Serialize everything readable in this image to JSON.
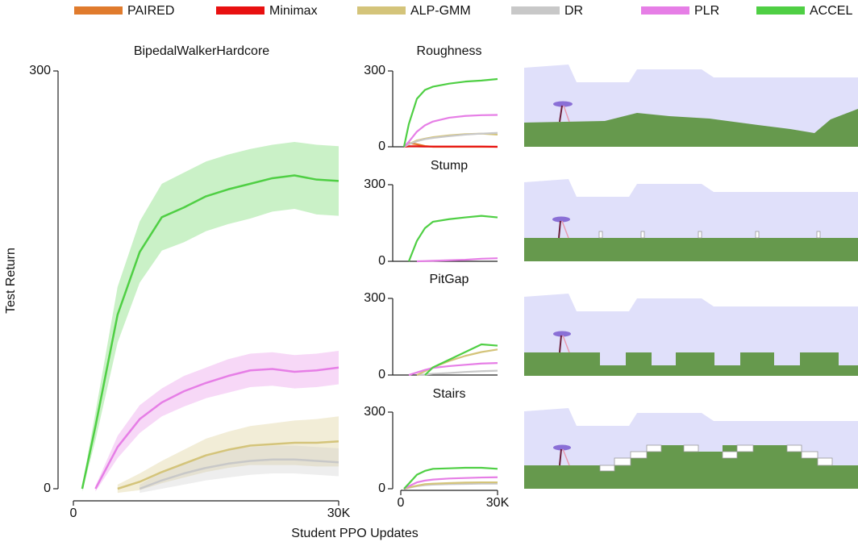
{
  "chart_data": [
    {
      "type": "line",
      "title": "BipedalWalkerHardcore",
      "y_label": "Test Return",
      "x_label": "Student PPO Updates",
      "x": [
        1000,
        2500,
        5000,
        7500,
        10000,
        12500,
        15000,
        17500,
        20000,
        22500,
        25000,
        27500,
        30000
      ],
      "xlim": [
        0,
        30000
      ],
      "xticks": [
        0,
        {
          "value": 30000,
          "label": "30K"
        }
      ],
      "ylim": [
        0,
        300
      ],
      "yticks": [
        0,
        300
      ],
      "series": [
        {
          "name": "ALP-GMM",
          "color": "#d4c47a",
          "values": [
            null,
            null,
            0,
            5,
            12,
            18,
            24,
            28,
            31,
            32,
            33,
            33,
            34
          ],
          "errors": [
            null,
            null,
            3,
            6,
            8,
            10,
            12,
            13,
            14,
            15,
            16,
            17,
            18
          ]
        },
        {
          "name": "DR",
          "color": "#c8c8c8",
          "values": [
            null,
            null,
            null,
            0,
            6,
            11,
            15,
            18,
            20,
            21,
            21,
            20,
            19
          ],
          "errors": [
            null,
            null,
            null,
            3,
            6,
            8,
            9,
            10,
            10,
            10,
            10,
            10,
            10
          ]
        },
        {
          "name": "PLR",
          "color": "#e67ee6",
          "values": [
            null,
            0,
            30,
            50,
            62,
            70,
            76,
            81,
            85,
            86,
            84,
            85,
            87
          ],
          "errors": [
            null,
            2,
            8,
            10,
            10,
            11,
            11,
            12,
            12,
            12,
            12,
            12,
            12
          ]
        },
        {
          "name": "ACCEL",
          "color": "#4fcf44",
          "values": [
            0,
            45,
            125,
            170,
            195,
            202,
            210,
            215,
            219,
            223,
            225,
            222,
            221
          ],
          "errors": [
            2,
            10,
            20,
            22,
            24,
            25,
            25,
            25,
            25,
            24,
            24,
            25,
            25
          ]
        }
      ]
    },
    {
      "type": "line",
      "title": "Roughness",
      "x": [
        1000,
        2500,
        5000,
        7500,
        10000,
        15000,
        20000,
        25000,
        30000
      ],
      "xlim": [
        0,
        30000
      ],
      "ylim": [
        0,
        300
      ],
      "yticks": [
        0,
        300
      ],
      "series": [
        {
          "name": "PAIRED",
          "color": "#e07b2d",
          "values": [
            0,
            15,
            10,
            3,
            0,
            0,
            0,
            0,
            0
          ]
        },
        {
          "name": "Minimax",
          "color": "#e81010",
          "values": [
            0,
            2,
            2,
            1,
            1,
            1,
            1,
            1,
            0
          ]
        },
        {
          "name": "ALP-GMM",
          "color": "#d4c47a",
          "values": [
            0,
            10,
            25,
            32,
            38,
            45,
            50,
            52,
            48
          ]
        },
        {
          "name": "DR",
          "color": "#c8c8c8",
          "values": [
            0,
            10,
            22,
            30,
            35,
            42,
            48,
            52,
            55
          ]
        },
        {
          "name": "PLR",
          "color": "#e67ee6",
          "values": [
            0,
            20,
            60,
            85,
            100,
            115,
            122,
            125,
            126
          ]
        },
        {
          "name": "ACCEL",
          "color": "#4fcf44",
          "values": [
            0,
            90,
            190,
            225,
            238,
            250,
            258,
            262,
            268
          ]
        }
      ]
    },
    {
      "type": "line",
      "title": "Stump",
      "x": [
        1000,
        2500,
        5000,
        7500,
        10000,
        15000,
        20000,
        25000,
        30000
      ],
      "xlim": [
        0,
        30000
      ],
      "ylim": [
        0,
        300
      ],
      "yticks": [
        0,
        300
      ],
      "series": [
        {
          "name": "PLR",
          "color": "#e67ee6",
          "values": [
            null,
            null,
            0,
            1,
            2,
            4,
            6,
            10,
            12
          ]
        },
        {
          "name": "ACCEL",
          "color": "#4fcf44",
          "values": [
            null,
            0,
            80,
            130,
            155,
            165,
            172,
            178,
            172
          ]
        }
      ]
    },
    {
      "type": "line",
      "title": "PitGap",
      "x": [
        1000,
        2500,
        5000,
        7500,
        10000,
        15000,
        20000,
        25000,
        30000
      ],
      "xlim": [
        0,
        30000
      ],
      "ylim": [
        0,
        300
      ],
      "yticks": [
        0,
        300
      ],
      "series": [
        {
          "name": "DR",
          "color": "#c8c8c8",
          "values": [
            null,
            null,
            0,
            2,
            5,
            8,
            12,
            15,
            17
          ]
        },
        {
          "name": "ALP-GMM",
          "color": "#d4c47a",
          "values": [
            null,
            null,
            0,
            15,
            30,
            55,
            75,
            90,
            100
          ]
        },
        {
          "name": "PLR",
          "color": "#e67ee6",
          "values": [
            null,
            0,
            10,
            20,
            28,
            35,
            40,
            45,
            47
          ]
        },
        {
          "name": "ACCEL",
          "color": "#4fcf44",
          "values": [
            null,
            null,
            null,
            0,
            30,
            60,
            90,
            120,
            115
          ]
        }
      ]
    },
    {
      "type": "line",
      "title": "Stairs",
      "x": [
        1000,
        2500,
        5000,
        7500,
        10000,
        15000,
        20000,
        25000,
        30000
      ],
      "xlim": [
        0,
        30000
      ],
      "xticks": [
        0,
        {
          "value": 30000,
          "label": "30K"
        }
      ],
      "ylim": [
        0,
        300
      ],
      "yticks": [
        0,
        300
      ],
      "series": [
        {
          "name": "DR",
          "color": "#c8c8c8",
          "values": [
            0,
            4,
            10,
            14,
            16,
            18,
            19,
            20,
            20
          ]
        },
        {
          "name": "ALP-GMM",
          "color": "#d4c47a",
          "values": [
            0,
            5,
            12,
            18,
            20,
            22,
            24,
            25,
            25
          ]
        },
        {
          "name": "PLR",
          "color": "#e67ee6",
          "values": [
            0,
            10,
            25,
            32,
            36,
            40,
            42,
            44,
            45
          ]
        },
        {
          "name": "ACCEL",
          "color": "#4fcf44",
          "values": [
            0,
            20,
            55,
            70,
            78,
            80,
            82,
            82,
            78
          ]
        }
      ]
    }
  ]
}
